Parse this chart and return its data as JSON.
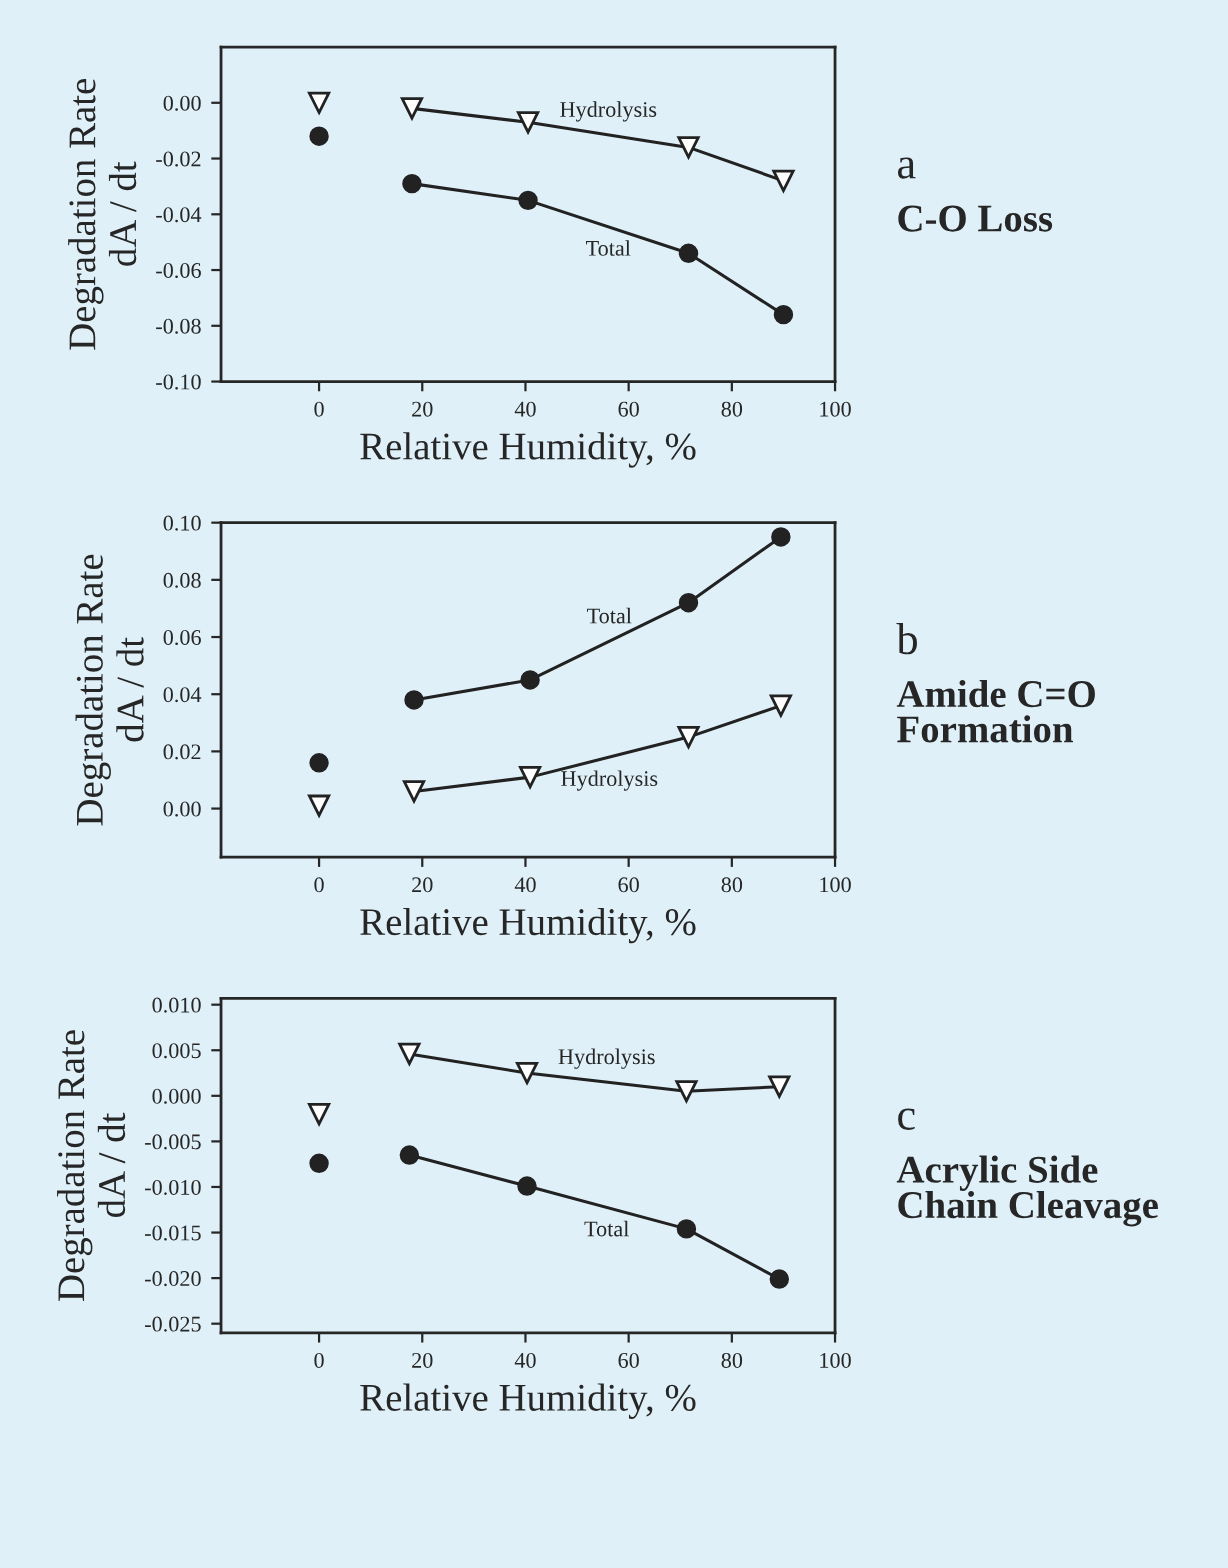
{
  "chart_data": [
    {
      "type": "line",
      "xlabel": "Relative Humidity, %",
      "ylabel": "Degradation Rate\ndA / dt",
      "xlim": [
        -19,
        100
      ],
      "xticks": [
        0,
        20,
        40,
        60,
        80,
        100
      ],
      "ylim": [
        -0.1,
        0.02
      ],
      "yticks": [
        {
          "value": 0.0,
          "label": "0.00"
        },
        {
          "value": -0.02,
          "label": "-0.02"
        },
        {
          "value": -0.04,
          "label": "-0.04"
        },
        {
          "value": -0.06,
          "label": "-0.06"
        },
        {
          "value": -0.08,
          "label": "-0.08"
        },
        {
          "value": -0.1,
          "label": "-0.10"
        }
      ],
      "annotations": [
        "a",
        "C-O Loss"
      ],
      "grid": false,
      "legend": false,
      "series": [
        {
          "name": "Hydrolysis",
          "color": "#222222",
          "marker": "triangle",
          "x": [
            18,
            40.5,
            71.6,
            90
          ],
          "values": [
            -0.002,
            -0.007,
            -0.016,
            -0.028
          ]
        },
        {
          "name": "Total",
          "color": "#222222",
          "marker": "circle",
          "x": [
            18,
            40.5,
            71.6,
            90
          ],
          "values": [
            -0.029,
            -0.035,
            -0.054,
            -0.076
          ]
        },
        {
          "type": "scatter",
          "color": "#222222",
          "marker": "triangle",
          "x": [
            0
          ],
          "values": [
            0.0
          ]
        },
        {
          "type": "scatter",
          "color": "#222222",
          "marker": "circle",
          "x": [
            0
          ],
          "values": [
            -0.012
          ]
        }
      ]
    },
    {
      "type": "line",
      "xlabel": "Relative Humidity, %",
      "ylabel": "Degradation Rate\ndA / dt",
      "xlim": [
        -19,
        100
      ],
      "xticks": [
        0,
        20,
        40,
        60,
        80,
        100
      ],
      "ylim": [
        -0.017,
        0.1
      ],
      "yticks": [
        {
          "value": 0.1,
          "label": "0.10"
        },
        {
          "value": 0.08,
          "label": "0.08"
        },
        {
          "value": 0.06,
          "label": "0.06"
        },
        {
          "value": 0.04,
          "label": "0.04"
        },
        {
          "value": 0.02,
          "label": "0.02"
        },
        {
          "value": 0.0,
          "label": "0.00"
        }
      ],
      "annotations": [
        "b",
        "Amide C=O\nFormation"
      ],
      "grid": false,
      "legend": false,
      "series": [
        {
          "name": "Total",
          "color": "#222222",
          "marker": "circle",
          "x": [
            18.4,
            40.9,
            71.6,
            89.5
          ],
          "values": [
            0.038,
            0.045,
            0.072,
            0.095
          ]
        },
        {
          "name": "Hydrolysis",
          "color": "#222222",
          "marker": "triangle",
          "x": [
            18.4,
            40.9,
            71.6,
            89.5
          ],
          "values": [
            0.006,
            0.011,
            0.025,
            0.036
          ]
        },
        {
          "type": "scatter",
          "color": "#222222",
          "marker": "circle",
          "x": [
            0
          ],
          "values": [
            0.016
          ]
        },
        {
          "type": "scatter",
          "color": "#222222",
          "marker": "triangle",
          "x": [
            0
          ],
          "values": [
            0.001
          ]
        }
      ]
    },
    {
      "type": "line",
      "xlabel": "Relative Humidity, %",
      "ylabel": "Degradation Rate\ndA / dt",
      "xlim": [
        -19,
        100
      ],
      "xticks": [
        0,
        20,
        40,
        60,
        80,
        100
      ],
      "ylim": [
        -0.026,
        0.0107
      ],
      "yticks": [
        {
          "value": 0.01,
          "label": "0.010"
        },
        {
          "value": 0.005,
          "label": "0.005"
        },
        {
          "value": 0.0,
          "label": "0.000"
        },
        {
          "value": -0.005,
          "label": "-0.005"
        },
        {
          "value": -0.01,
          "label": "-0.010"
        },
        {
          "value": -0.015,
          "label": "-0.015"
        },
        {
          "value": -0.02,
          "label": "-0.020"
        },
        {
          "value": -0.025,
          "label": "-0.025"
        }
      ],
      "annotations": [
        "c",
        "Acrylic Side\nChain Cleavage"
      ],
      "grid": false,
      "legend": false,
      "series": [
        {
          "name": "Hydrolysis",
          "color": "#222222",
          "marker": "triangle",
          "x": [
            17.5,
            40.3,
            71.2,
            89.2
          ],
          "values": [
            0.0046,
            0.0025,
            0.0005,
            0.001
          ]
        },
        {
          "name": "Total",
          "color": "#222222",
          "marker": "circle",
          "x": [
            17.5,
            40.3,
            71.2,
            89.2
          ],
          "values": [
            -0.0065,
            -0.0099,
            -0.0146,
            -0.0201
          ]
        },
        {
          "type": "scatter",
          "color": "#222222",
          "marker": "triangle",
          "x": [
            0
          ],
          "values": [
            -0.002
          ]
        },
        {
          "type": "scatter",
          "color": "#222222",
          "marker": "circle",
          "x": [
            0
          ],
          "values": [
            -0.0074
          ]
        }
      ]
    }
  ]
}
